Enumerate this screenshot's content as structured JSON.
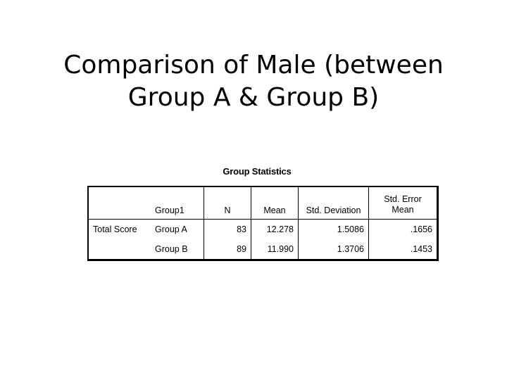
{
  "slide": {
    "title": "Comparison of Male (between Group A & Group B)"
  },
  "table": {
    "caption": "Group Statistics",
    "headers": {
      "variable": "",
      "group": "Group1",
      "n": "N",
      "mean": "Mean",
      "sd": "Std. Deviation",
      "se_line1": "Std. Error",
      "se_line2": "Mean"
    },
    "rows": [
      {
        "variable": "Total Score",
        "group": "Group A",
        "n": "83",
        "mean": "12.278",
        "sd": "1.5086",
        "se": ".1656"
      },
      {
        "variable": "",
        "group": "Group B",
        "n": "89",
        "mean": "11.990",
        "sd": "1.3706",
        "se": ".1453"
      }
    ]
  }
}
